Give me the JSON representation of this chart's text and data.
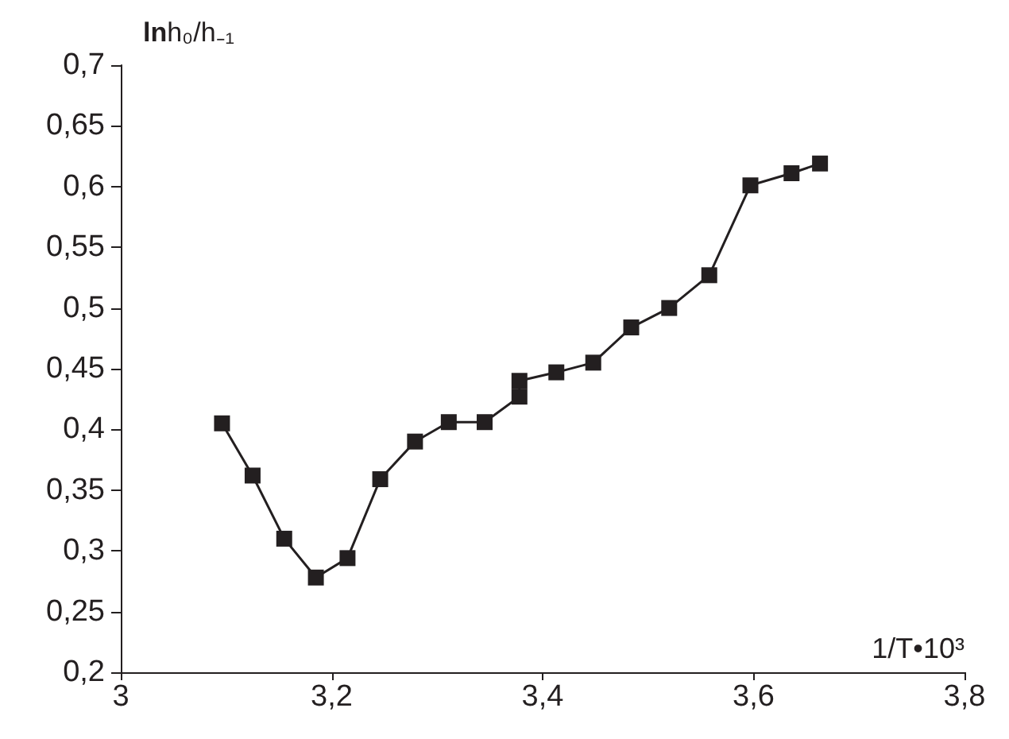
{
  "chart_data": {
    "type": "line",
    "xlabel": "1/T•10³",
    "ylabel": "lnh₀/h₋₁",
    "x": [
      3.096,
      3.125,
      3.155,
      3.185,
      3.215,
      3.246,
      3.279,
      3.311,
      3.345,
      3.378,
      3.378,
      3.413,
      3.448,
      3.484,
      3.52,
      3.558,
      3.597,
      3.636,
      3.663
    ],
    "series": [
      {
        "color": "#231f20",
        "values": [
          0.405,
          0.362,
          0.31,
          0.278,
          0.294,
          0.359,
          0.39,
          0.406,
          0.406,
          0.427,
          0.44,
          0.447,
          0.455,
          0.484,
          0.5,
          0.527,
          0.601,
          0.611,
          0.619
        ]
      }
    ],
    "xlim": [
      3,
      3.8
    ],
    "xticks": [
      {
        "value": 3,
        "label": "3"
      },
      {
        "value": 3.2,
        "label": "3,2"
      },
      {
        "value": 3.4,
        "label": "3,4"
      },
      {
        "value": 3.6,
        "label": "3,6"
      },
      {
        "value": 3.8,
        "label": "3,8"
      }
    ],
    "ylim": [
      0.2,
      0.7
    ],
    "yticks": [
      {
        "value": 0.2,
        "label": "0,2"
      },
      {
        "value": 0.25,
        "label": "0,25"
      },
      {
        "value": 0.3,
        "label": "0,3"
      },
      {
        "value": 0.35,
        "label": "0,35"
      },
      {
        "value": 0.4,
        "label": "0,4"
      },
      {
        "value": 0.45,
        "label": "0,45"
      },
      {
        "value": 0.5,
        "label": "0,5"
      },
      {
        "value": 0.55,
        "label": "0,55"
      },
      {
        "value": 0.6,
        "label": "0,6"
      },
      {
        "value": 0.65,
        "label": "0,65"
      },
      {
        "value": 0.7,
        "label": "0,7"
      }
    ],
    "grid": false,
    "marker": "square",
    "line_style": "solid"
  }
}
